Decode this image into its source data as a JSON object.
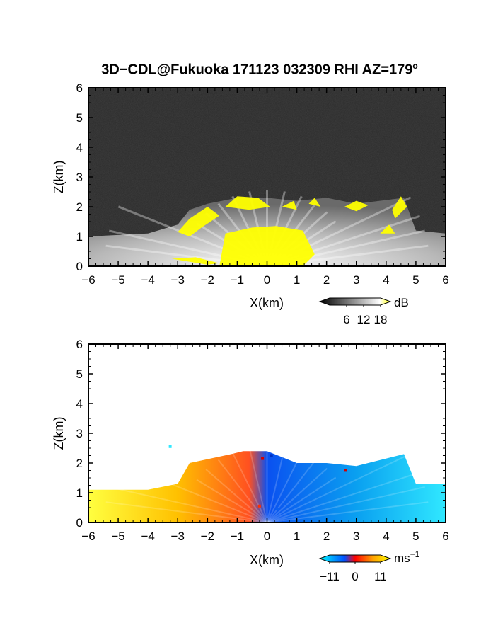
{
  "figure": {
    "title": "3D−CDL@Fukuoka 171123 032309 RHI AZ=179",
    "title_superscript": "o"
  },
  "chart_data": [
    {
      "type": "heatmap",
      "title": "3D−CDL@Fukuoka 171123 032309 RHI AZ=179°",
      "xlabel": "X(km)",
      "ylabel": "Z(km)",
      "xlim": [
        -6,
        6
      ],
      "ylim": [
        0,
        6
      ],
      "x_ticks": [
        -6,
        -5,
        -4,
        -3,
        -2,
        -1,
        0,
        1,
        2,
        3,
        4,
        5,
        6
      ],
      "y_ticks": [
        0,
        1,
        2,
        3,
        4,
        5,
        6
      ],
      "x_tick_labels": [
        "−6",
        "−5",
        "−4",
        "−3",
        "−2",
        "−1",
        "0",
        "1",
        "2",
        "3",
        "4",
        "5",
        "6"
      ],
      "y_tick_labels": [
        "0",
        "1",
        "2",
        "3",
        "4",
        "5",
        "6"
      ],
      "colorbar": {
        "unit": "dB",
        "tick_labels": [
          "6",
          "12",
          "18"
        ],
        "ticks": [
          6,
          12,
          18
        ],
        "range": [
          0,
          18
        ],
        "colors": [
          "#000000",
          "#ffffff",
          "#ffff00"
        ]
      },
      "background_color": "#2a2a2a",
      "saturated_color": "#ffff00",
      "echo_outline": [
        [
          -6,
          1.0
        ],
        [
          -4,
          1.1
        ],
        [
          -3,
          1.4
        ],
        [
          -2.6,
          1.9
        ],
        [
          -2,
          2.1
        ],
        [
          -1,
          2.3
        ],
        [
          0,
          2.3
        ],
        [
          1,
          2.2
        ],
        [
          2,
          2.3
        ],
        [
          3,
          2.1
        ],
        [
          4.6,
          2.3
        ],
        [
          5,
          1.2
        ],
        [
          6,
          1.1
        ]
      ]
    },
    {
      "type": "heatmap",
      "xlabel": "X(km)",
      "ylabel": "Z(km)",
      "xlim": [
        -6,
        6
      ],
      "ylim": [
        0,
        6
      ],
      "x_ticks": [
        -6,
        -5,
        -4,
        -3,
        -2,
        -1,
        0,
        1,
        2,
        3,
        4,
        5,
        6
      ],
      "y_ticks": [
        0,
        1,
        2,
        3,
        4,
        5,
        6
      ],
      "x_tick_labels": [
        "−6",
        "−5",
        "−4",
        "−3",
        "−2",
        "−1",
        "0",
        "1",
        "2",
        "3",
        "4",
        "5",
        "6"
      ],
      "y_tick_labels": [
        "0",
        "1",
        "2",
        "3",
        "4",
        "5",
        "6"
      ],
      "colorbar": {
        "unit": "ms",
        "unit_superscript": "−1",
        "tick_labels": [
          "−11",
          "0",
          "11"
        ],
        "ticks": [
          -11,
          0,
          11
        ],
        "range": [
          -11,
          11
        ],
        "colors": [
          "#00ffff",
          "#0050ff",
          "#ff0000",
          "#ffa000",
          "#ffff00"
        ]
      },
      "approaching_color": "#0a78f0",
      "receding_color": "#ff6020",
      "echo_outline": [
        [
          -6,
          1.1
        ],
        [
          -4,
          1.1
        ],
        [
          -3,
          1.3
        ],
        [
          -2.6,
          2.0
        ],
        [
          -1.2,
          2.3
        ],
        [
          -0.8,
          2.4
        ],
        [
          0,
          2.4
        ],
        [
          0.5,
          2.2
        ],
        [
          1,
          2.0
        ],
        [
          2,
          2.0
        ],
        [
          3,
          1.9
        ],
        [
          4.6,
          2.3
        ],
        [
          5,
          1.3
        ],
        [
          6,
          1.3
        ]
      ]
    }
  ]
}
